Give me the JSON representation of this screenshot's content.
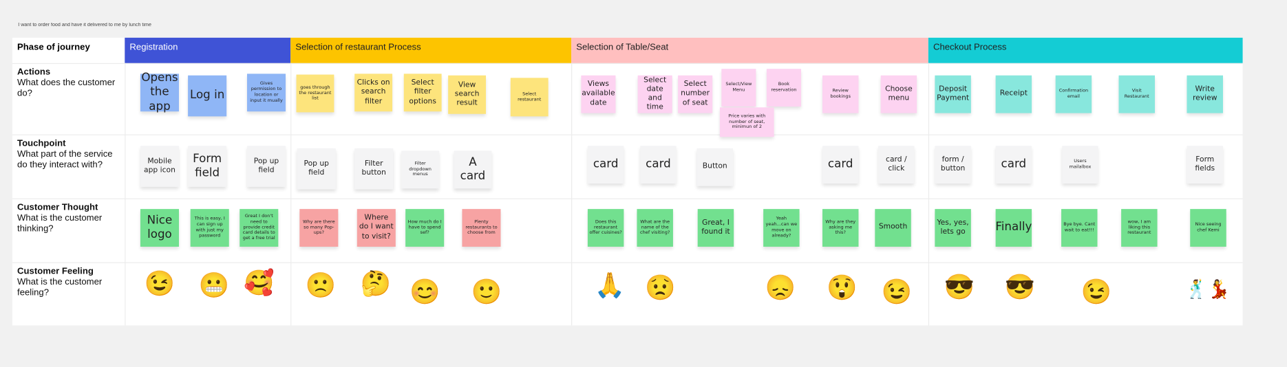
{
  "title": "I want to order food and have it delivered to me by lunch time",
  "phase_label": "Phase of journey",
  "phases": [
    {
      "name": "Registration",
      "color": "#3f53d6",
      "text": "#ffffff"
    },
    {
      "name": "Selection of restaurant Process",
      "color": "#fdc400",
      "text": "#222222"
    },
    {
      "name": "Selection of Table/Seat",
      "color": "#ffbfbf",
      "text": "#222222"
    },
    {
      "name": "Checkout Process",
      "color": "#14ccd4",
      "text": "#222222"
    }
  ],
  "rows": [
    {
      "title": "Actions",
      "question": "What does the customer do?"
    },
    {
      "title": "Touchpoint",
      "question": "What part of the service do they interact with?"
    },
    {
      "title": "Customer Thought",
      "question": "What is the customer thinking?"
    },
    {
      "title": "Customer Feeling",
      "question": "What is the customer feeling?"
    }
  ],
  "colors": {
    "blue": "#8fb6f6",
    "yellow": "#fde47c",
    "pink": "#fdd3f1",
    "teal": "#88e7dd",
    "green": "#72e08f",
    "red": "#f7a3a3",
    "gray": "#f4f4f5"
  },
  "actions": [
    {
      "text": "Opens the app",
      "color": "blue"
    },
    {
      "text": "Log in",
      "color": "blue"
    },
    {
      "text": "Gives permission to location or input it mually",
      "color": "blue"
    },
    {
      "text": "goes through the restaurant list",
      "color": "yellow"
    },
    {
      "text": "Clicks on search filter",
      "color": "yellow"
    },
    {
      "text": "Select filter options",
      "color": "yellow"
    },
    {
      "text": "View search result",
      "color": "yellow"
    },
    {
      "text": "Select restaurant",
      "color": "yellow"
    },
    {
      "text": "Views available date",
      "color": "pink"
    },
    {
      "text": "Select date and time",
      "color": "pink"
    },
    {
      "text": "Select number of seat",
      "color": "pink"
    },
    {
      "text": "Select/View Menu",
      "color": "pink"
    },
    {
      "text": "Book reservation",
      "color": "pink"
    },
    {
      "text": "Price varies with number of seat, minimun of 2",
      "color": "pink"
    },
    {
      "text": "Review bookings",
      "color": "pink"
    },
    {
      "text": "Choose menu",
      "color": "pink"
    },
    {
      "text": "Deposit Payment",
      "color": "teal"
    },
    {
      "text": "Receipt",
      "color": "teal"
    },
    {
      "text": "Confirmation email",
      "color": "teal"
    },
    {
      "text": "Visit Restaurant",
      "color": "teal"
    },
    {
      "text": "Write review",
      "color": "teal"
    }
  ],
  "touchpoints": [
    {
      "text": "Mobile app icon",
      "color": "gray"
    },
    {
      "text": "Form field",
      "color": "gray"
    },
    {
      "text": "Pop up field",
      "color": "gray"
    },
    {
      "text": "Pop up field",
      "color": "gray"
    },
    {
      "text": "Filter button",
      "color": "gray"
    },
    {
      "text": "Filter dropdown menus",
      "color": "gray"
    },
    {
      "text": "A card",
      "color": "gray"
    },
    {
      "text": "card",
      "color": "gray"
    },
    {
      "text": "card",
      "color": "gray"
    },
    {
      "text": "Button",
      "color": "gray"
    },
    {
      "text": "card",
      "color": "gray"
    },
    {
      "text": "card / click",
      "color": "gray"
    },
    {
      "text": "form / button",
      "color": "gray"
    },
    {
      "text": "card",
      "color": "gray"
    },
    {
      "text": "Users mailalbox",
      "color": "gray"
    },
    {
      "text": "Form fields",
      "color": "gray"
    }
  ],
  "thoughts": [
    {
      "text": "Nice logo",
      "color": "green"
    },
    {
      "text": "This is easy, I can sign up with just my password",
      "color": "green"
    },
    {
      "text": "Great I don't need to provide credit card details to get a free trial",
      "color": "green"
    },
    {
      "text": "Why are there so many Pop-ups?",
      "color": "red"
    },
    {
      "text": "Where do I want to visit?",
      "color": "red"
    },
    {
      "text": "How much do I have to spend sef?",
      "color": "green"
    },
    {
      "text": "Plenty restaurants to choose from",
      "color": "red"
    },
    {
      "text": "Does this restaurant offer cuisines?",
      "color": "green"
    },
    {
      "text": "What are the name of the chef visiting?",
      "color": "green"
    },
    {
      "text": "Great, I found it",
      "color": "green"
    },
    {
      "text": "Yeah yeah...can we move on already?",
      "color": "green"
    },
    {
      "text": "Why are they asking me this?",
      "color": "green"
    },
    {
      "text": "Smooth",
      "color": "green"
    },
    {
      "text": "Yes, yes, lets go",
      "color": "green"
    },
    {
      "text": "Finally",
      "color": "green"
    },
    {
      "text": "Bye bye. Cant wait to eat!!!",
      "color": "green"
    },
    {
      "text": "wow, I am liking this restaurant",
      "color": "green"
    },
    {
      "text": "Nice seeing chef Kemi",
      "color": "green"
    }
  ],
  "feelings": [
    {
      "icon": "winking-face-icon",
      "emoji": "😉"
    },
    {
      "icon": "grimacing-face-icon",
      "emoji": "😬"
    },
    {
      "icon": "smiling-face-with-hearts-icon",
      "emoji": "🥰"
    },
    {
      "icon": "slightly-frowning-face-icon",
      "emoji": "🙁"
    },
    {
      "icon": "thinking-face-icon",
      "emoji": "🤔"
    },
    {
      "icon": "smiling-face-icon",
      "emoji": "😊"
    },
    {
      "icon": "slightly-smiling-face-icon",
      "emoji": "🙂"
    },
    {
      "icon": "folded-hands-icon",
      "emoji": "🙏"
    },
    {
      "icon": "worried-face-icon",
      "emoji": "😟"
    },
    {
      "icon": "disappointed-face-icon",
      "emoji": "😞"
    },
    {
      "icon": "astonished-face-icon",
      "emoji": "😲"
    },
    {
      "icon": "winking-face-icon",
      "emoji": "😉"
    },
    {
      "icon": "sunglasses-face-icon",
      "emoji": "😎"
    },
    {
      "icon": "sunglasses-face-icon",
      "emoji": "😎"
    },
    {
      "icon": "winking-face-icon",
      "emoji": "😉"
    },
    {
      "icon": "dancers-icon",
      "emoji": "🕺💃"
    }
  ]
}
